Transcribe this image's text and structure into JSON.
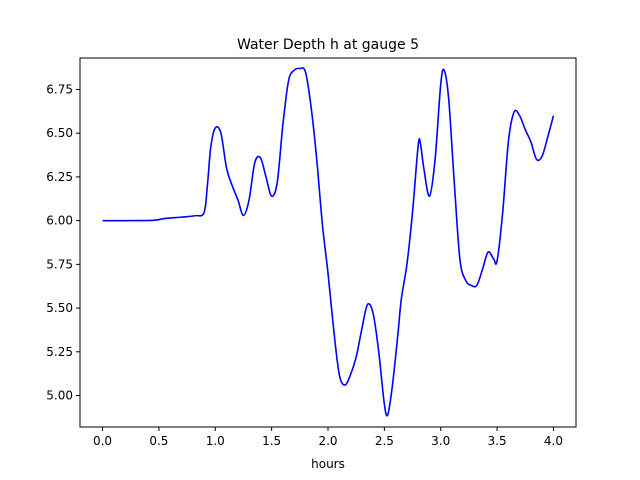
{
  "chart_data": {
    "type": "line",
    "title": "Water Depth h at gauge 5",
    "xlabel": "hours",
    "ylabel": "",
    "xlim": [
      -0.2,
      4.2
    ],
    "ylim": [
      4.82,
      6.93
    ],
    "xticks": [
      0.0,
      0.5,
      1.0,
      1.5,
      2.0,
      2.5,
      3.0,
      3.5,
      4.0
    ],
    "xtick_labels": [
      "0.0",
      "0.5",
      "1.0",
      "1.5",
      "2.0",
      "2.5",
      "3.0",
      "3.5",
      "4.0"
    ],
    "yticks": [
      5.0,
      5.25,
      5.5,
      5.75,
      6.0,
      6.25,
      6.5,
      6.75
    ],
    "ytick_labels": [
      "5.00",
      "5.25",
      "5.50",
      "5.75",
      "6.00",
      "6.25",
      "6.50",
      "6.75"
    ],
    "grid": false,
    "series": [
      {
        "color": "#0000ff",
        "points": [
          [
            0.0,
            6.0
          ],
          [
            0.2,
            6.0
          ],
          [
            0.45,
            6.002
          ],
          [
            0.55,
            6.012
          ],
          [
            0.7,
            6.02
          ],
          [
            0.82,
            6.028
          ],
          [
            0.9,
            6.045
          ],
          [
            0.93,
            6.2
          ],
          [
            0.96,
            6.42
          ],
          [
            1.0,
            6.53
          ],
          [
            1.05,
            6.5
          ],
          [
            1.1,
            6.3
          ],
          [
            1.15,
            6.2
          ],
          [
            1.2,
            6.12
          ],
          [
            1.25,
            6.03
          ],
          [
            1.3,
            6.12
          ],
          [
            1.35,
            6.33
          ],
          [
            1.4,
            6.36
          ],
          [
            1.45,
            6.25
          ],
          [
            1.5,
            6.14
          ],
          [
            1.55,
            6.22
          ],
          [
            1.6,
            6.55
          ],
          [
            1.65,
            6.8
          ],
          [
            1.7,
            6.86
          ],
          [
            1.75,
            6.87
          ],
          [
            1.8,
            6.85
          ],
          [
            1.85,
            6.65
          ],
          [
            1.9,
            6.35
          ],
          [
            1.95,
            5.98
          ],
          [
            2.0,
            5.7
          ],
          [
            2.05,
            5.38
          ],
          [
            2.1,
            5.12
          ],
          [
            2.15,
            5.06
          ],
          [
            2.2,
            5.12
          ],
          [
            2.25,
            5.22
          ],
          [
            2.3,
            5.38
          ],
          [
            2.35,
            5.52
          ],
          [
            2.4,
            5.47
          ],
          [
            2.45,
            5.25
          ],
          [
            2.5,
            4.95
          ],
          [
            2.53,
            4.89
          ],
          [
            2.57,
            5.05
          ],
          [
            2.62,
            5.35
          ],
          [
            2.65,
            5.55
          ],
          [
            2.7,
            5.75
          ],
          [
            2.75,
            6.05
          ],
          [
            2.8,
            6.43
          ],
          [
            2.82,
            6.44
          ],
          [
            2.85,
            6.3
          ],
          [
            2.9,
            6.14
          ],
          [
            2.95,
            6.35
          ],
          [
            3.0,
            6.78
          ],
          [
            3.03,
            6.86
          ],
          [
            3.07,
            6.7
          ],
          [
            3.12,
            6.22
          ],
          [
            3.17,
            5.78
          ],
          [
            3.22,
            5.66
          ],
          [
            3.27,
            5.63
          ],
          [
            3.32,
            5.63
          ],
          [
            3.37,
            5.72
          ],
          [
            3.42,
            5.82
          ],
          [
            3.47,
            5.78
          ],
          [
            3.5,
            5.77
          ],
          [
            3.55,
            6.05
          ],
          [
            3.6,
            6.45
          ],
          [
            3.65,
            6.62
          ],
          [
            3.7,
            6.6
          ],
          [
            3.75,
            6.52
          ],
          [
            3.8,
            6.45
          ],
          [
            3.85,
            6.35
          ],
          [
            3.9,
            6.37
          ],
          [
            3.95,
            6.48
          ],
          [
            4.0,
            6.6
          ]
        ]
      }
    ]
  }
}
